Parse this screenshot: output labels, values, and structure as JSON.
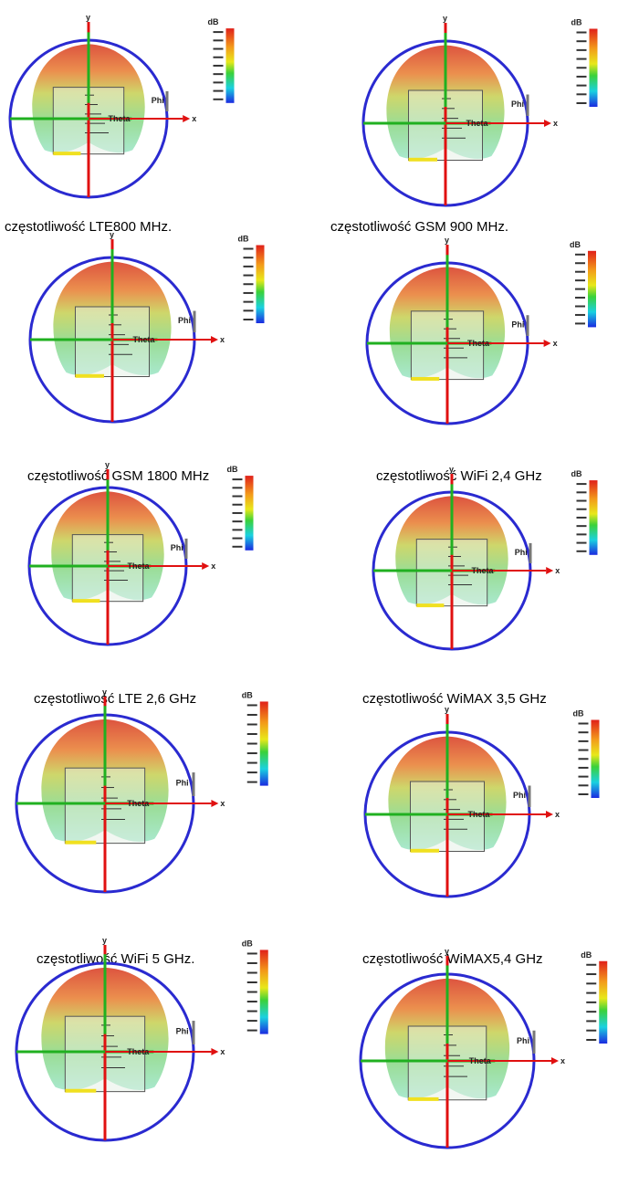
{
  "figure_labels": {
    "y": "y",
    "x": "x",
    "phi": "Phi",
    "theta": "Theta",
    "unit": "dB"
  },
  "figures": [
    {
      "caption": "częstotliwość LTE800 MHz."
    },
    {
      "caption": "częstotliwość GSM 900 MHz."
    },
    {
      "caption": "częstotliwość GSM 1800 MHz"
    },
    {
      "caption": "częstotliwość WiFi 2,4 GHz"
    },
    {
      "caption": "częstotliwość LTE 2,6 GHz"
    },
    {
      "caption": "częstotliwość WiMAX 3,5 GHz"
    },
    {
      "caption": "częstotliwość WiFi 5  GHz."
    },
    {
      "caption": "częstotliwość WiMAX5,4 GHz"
    },
    {},
    {}
  ]
}
